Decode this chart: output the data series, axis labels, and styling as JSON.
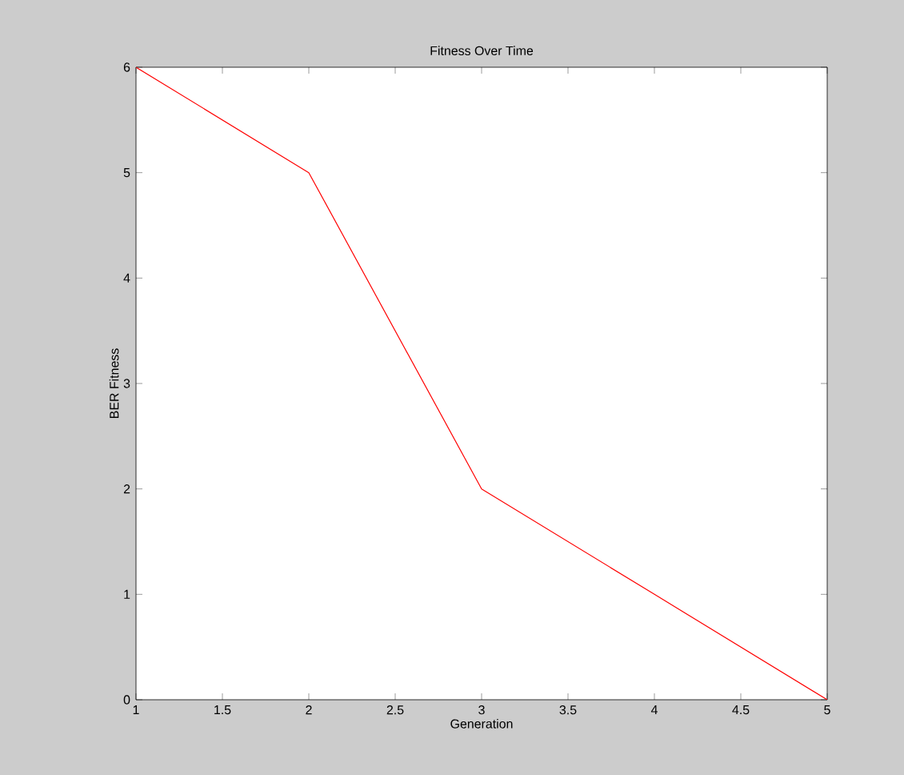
{
  "chart_data": {
    "type": "line",
    "title": "Fitness Over Time",
    "xlabel": "Generation",
    "ylabel": "BER Fitness",
    "x": [
      1,
      2,
      3,
      4,
      5
    ],
    "series": [
      {
        "color": "#ff0000",
        "values": [
          6,
          5,
          2,
          1,
          0
        ]
      }
    ],
    "xlim": [
      1,
      5
    ],
    "xticks": [
      1,
      1.5,
      2,
      2.5,
      3,
      3.5,
      4,
      4.5,
      5
    ],
    "ylim": [
      0,
      6
    ],
    "yticks": [
      0,
      1,
      2,
      3,
      4,
      5,
      6
    ],
    "grid": false,
    "marker": "none",
    "line_style": "solid"
  }
}
